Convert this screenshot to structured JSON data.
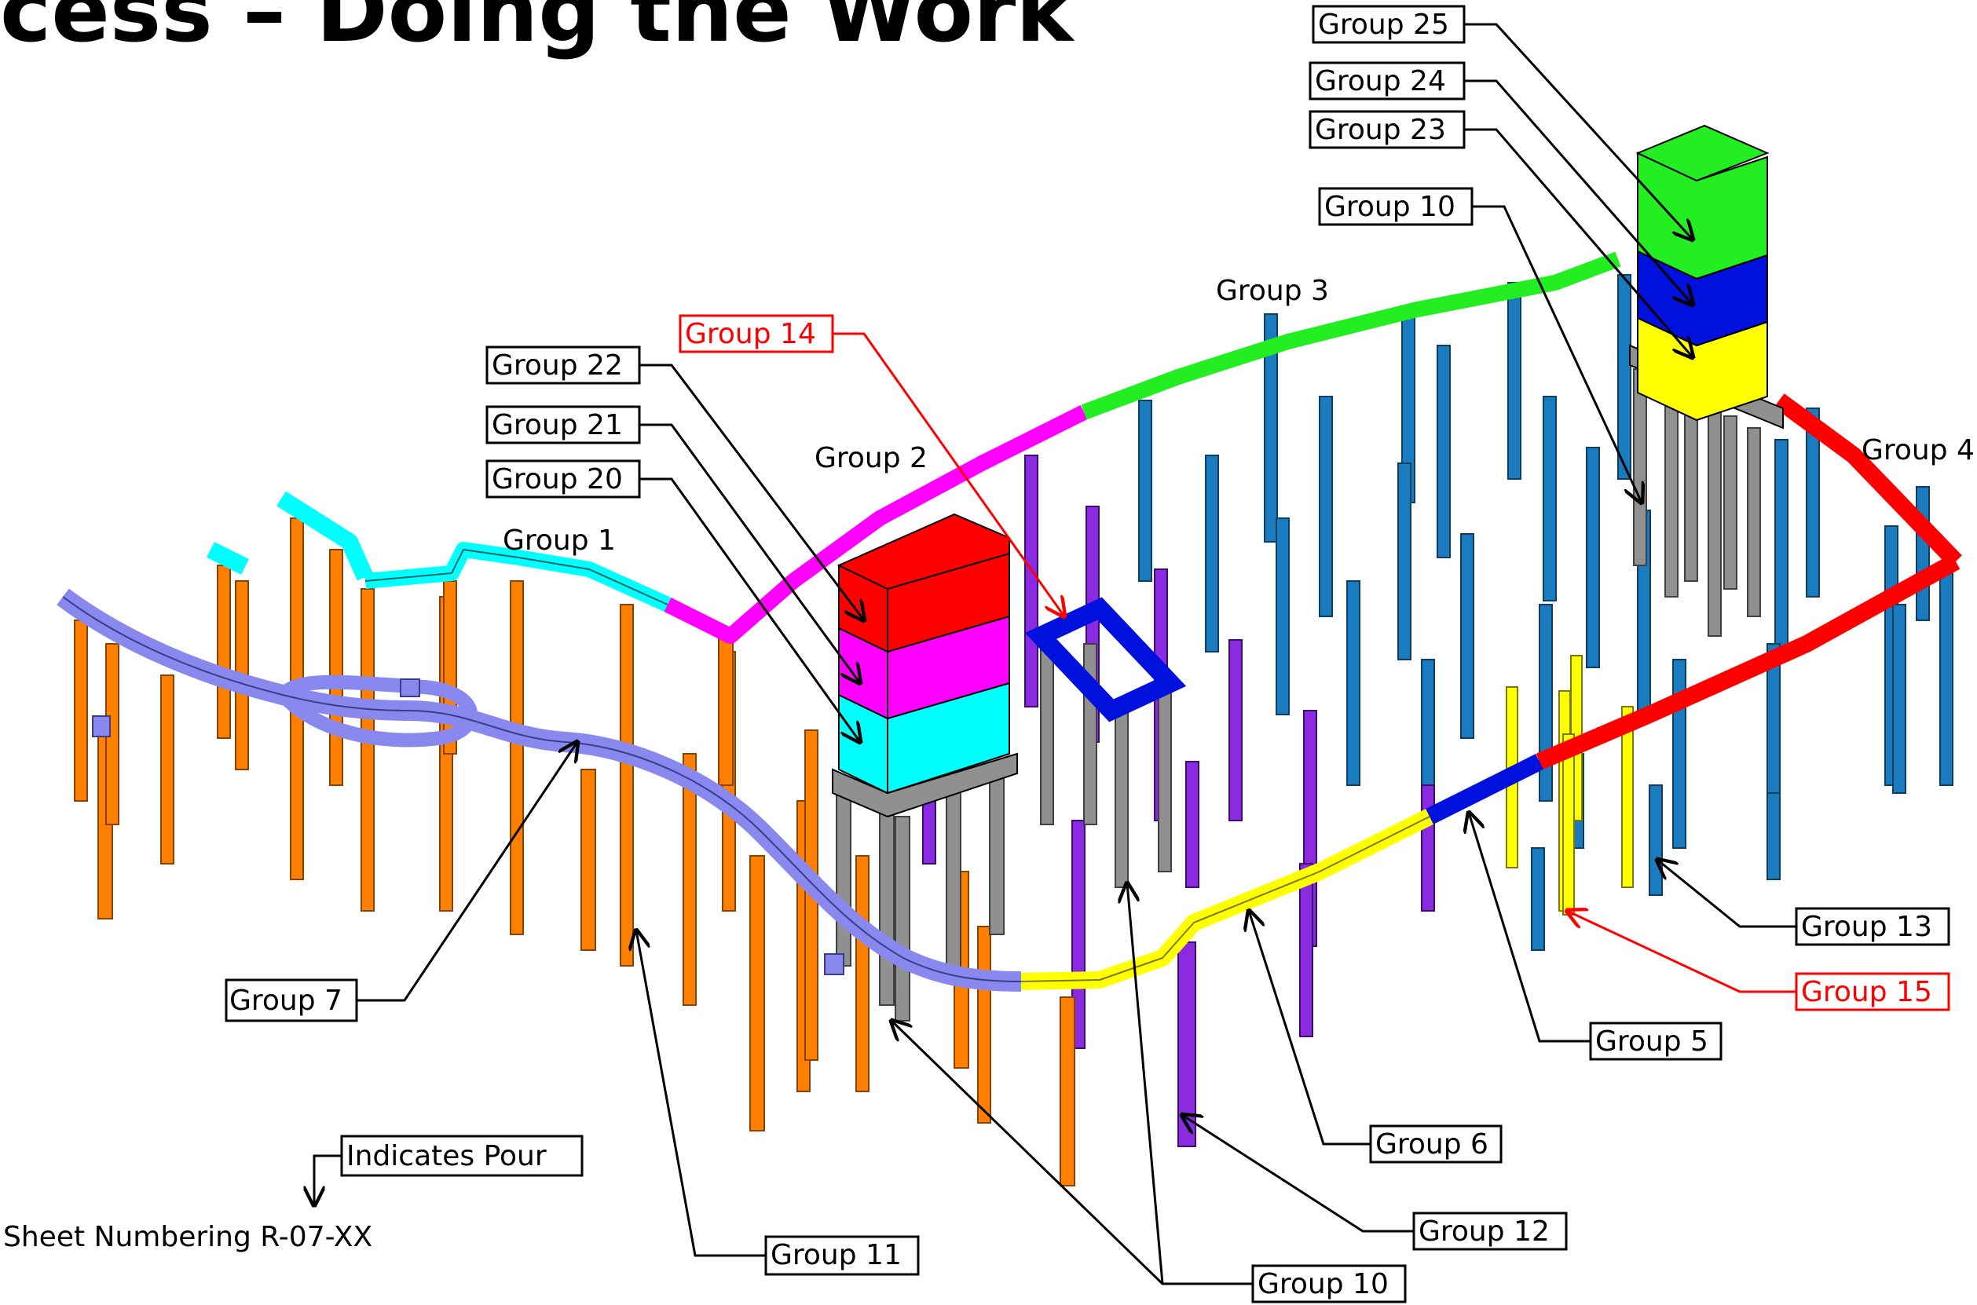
{
  "title": "cess – Doing the Work",
  "colors": {
    "cyan": "#00ffff",
    "magenta": "#ff00ff",
    "green": "#22ee22",
    "red": "#ff0000",
    "yellow": "#ffff00",
    "blue": "#0011dd",
    "lavender": "#8888ee",
    "orange": "#ff8000",
    "purple": "#8a2be2",
    "steel": "#1a7bbf",
    "gray": "#909090",
    "callout_black": "#000000",
    "callout_red": "#ff0000"
  },
  "plain_labels": {
    "group1": "Group 1",
    "group2": "Group 2",
    "group3": "Group 3",
    "group4": "Group 4"
  },
  "callouts": {
    "group25": "Group 25",
    "group24": "Group 24",
    "group23": "Group 23",
    "group10_top": "Group 10",
    "group14": "Group 14",
    "group22": "Group 22",
    "group21": "Group 21",
    "group20": "Group 20",
    "group7": "Group 7",
    "group13": "Group 13",
    "group15": "Group 15",
    "group5": "Group 5",
    "group6": "Group 6",
    "group12": "Group 12",
    "group11": "Group 11",
    "group10_bottom": "Group 10"
  },
  "legend": {
    "pour": "Indicates Pour",
    "sheet": "Sheet Numbering R-07-XX"
  }
}
